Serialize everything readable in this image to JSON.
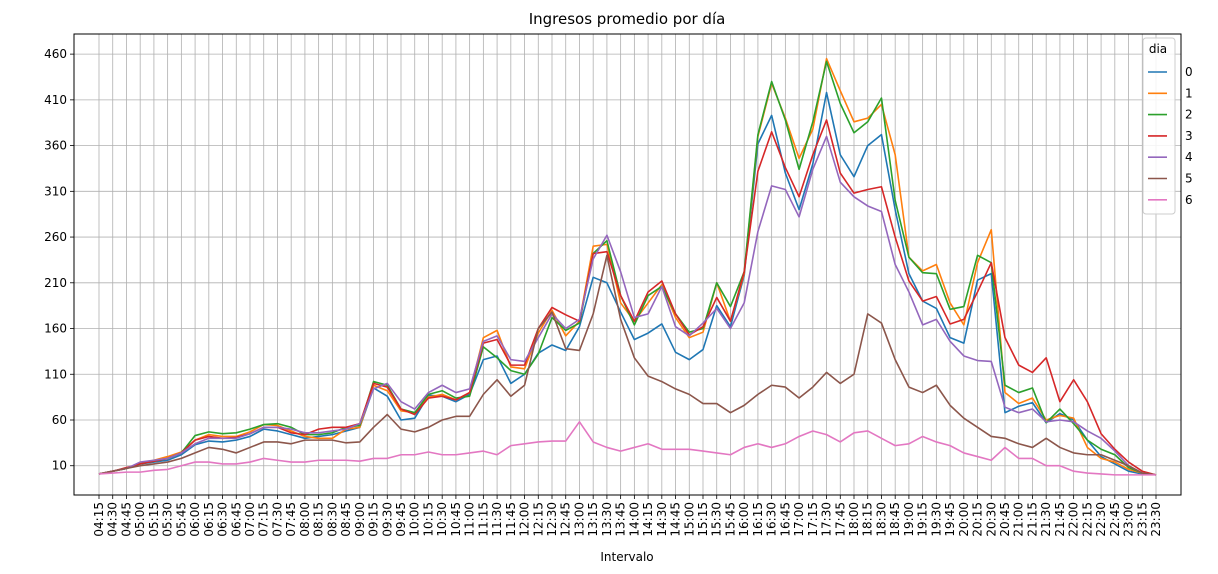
{
  "chart_data": {
    "type": "line",
    "title": "Ingresos promedio por día",
    "xlabel": "Intervalo",
    "ylabel": "",
    "ylim": [
      -22,
      482
    ],
    "yticks": [
      10,
      60,
      110,
      160,
      210,
      260,
      310,
      360,
      410,
      460
    ],
    "grid": true,
    "legend": {
      "title": "dia",
      "placement": "top-right"
    },
    "colors": [
      "#1f77b4",
      "#ff7f0e",
      "#2ca02c",
      "#d62728",
      "#9467bd",
      "#8c564b",
      "#e377c2"
    ],
    "categories": [
      "04:15",
      "04:30",
      "04:45",
      "05:00",
      "05:15",
      "05:30",
      "05:45",
      "06:00",
      "06:15",
      "06:30",
      "06:45",
      "07:00",
      "07:15",
      "07:30",
      "07:45",
      "08:00",
      "08:15",
      "08:30",
      "08:45",
      "09:00",
      "09:15",
      "09:30",
      "09:45",
      "10:00",
      "10:15",
      "10:30",
      "10:45",
      "11:00",
      "11:15",
      "11:30",
      "11:45",
      "12:00",
      "12:15",
      "12:30",
      "12:45",
      "13:00",
      "13:15",
      "13:30",
      "13:45",
      "14:00",
      "14:15",
      "14:30",
      "14:45",
      "15:00",
      "15:15",
      "15:30",
      "15:45",
      "16:00",
      "16:15",
      "16:30",
      "16:45",
      "17:00",
      "17:15",
      "17:30",
      "17:45",
      "18:00",
      "18:15",
      "18:30",
      "18:45",
      "19:00",
      "19:15",
      "19:30",
      "19:45",
      "20:00",
      "20:15",
      "20:30",
      "20:45",
      "21:00",
      "21:15",
      "21:30",
      "21:45",
      "22:00",
      "22:15",
      "22:30",
      "22:45",
      "23:00",
      "23:15",
      "23:30"
    ],
    "series": [
      {
        "name": "0",
        "values": [
          1,
          4,
          7,
          12,
          14,
          16,
          22,
          33,
          37,
          36,
          38,
          42,
          50,
          48,
          44,
          40,
          42,
          44,
          48,
          52,
          95,
          86,
          60,
          62,
          87,
          86,
          80,
          88,
          126,
          130,
          100,
          110,
          133,
          142,
          136,
          162,
          216,
          210,
          178,
          148,
          155,
          165,
          134,
          126,
          137,
          185,
          162,
          218,
          362,
          393,
          330,
          290,
          340,
          418,
          350,
          326,
          360,
          372,
          290,
          220,
          190,
          182,
          150,
          144,
          213,
          220,
          68,
          75,
          79,
          57,
          67,
          60,
          38,
          20,
          12,
          4,
          1,
          0
        ]
      },
      {
        "name": "1",
        "values": [
          1,
          4,
          7,
          13,
          16,
          20,
          25,
          38,
          44,
          42,
          42,
          47,
          55,
          54,
          48,
          42,
          40,
          40,
          50,
          52,
          98,
          92,
          70,
          68,
          85,
          88,
          82,
          90,
          150,
          158,
          118,
          116,
          155,
          180,
          152,
          168,
          250,
          252,
          188,
          168,
          188,
          208,
          172,
          150,
          156,
          210,
          168,
          220,
          370,
          428,
          390,
          346,
          378,
          455,
          420,
          386,
          390,
          405,
          350,
          238,
          223,
          230,
          188,
          164,
          232,
          268,
          90,
          78,
          84,
          60,
          65,
          62,
          30,
          18,
          14,
          6,
          2,
          0
        ]
      },
      {
        "name": "2",
        "values": [
          1,
          4,
          7,
          12,
          15,
          18,
          24,
          43,
          47,
          45,
          46,
          50,
          55,
          56,
          52,
          44,
          44,
          46,
          52,
          54,
          102,
          98,
          72,
          68,
          88,
          92,
          84,
          86,
          140,
          128,
          114,
          110,
          132,
          172,
          158,
          166,
          242,
          256,
          196,
          164,
          196,
          206,
          176,
          156,
          160,
          210,
          184,
          222,
          372,
          430,
          388,
          334,
          386,
          452,
          406,
          374,
          386,
          412,
          300,
          238,
          221,
          220,
          181,
          184,
          240,
          232,
          98,
          90,
          95,
          57,
          72,
          56,
          38,
          28,
          22,
          8,
          2,
          0
        ]
      },
      {
        "name": "3",
        "values": [
          1,
          4,
          8,
          12,
          15,
          18,
          24,
          38,
          42,
          40,
          41,
          45,
          52,
          52,
          46,
          44,
          50,
          52,
          52,
          56,
          100,
          96,
          72,
          66,
          84,
          86,
          82,
          90,
          144,
          148,
          120,
          120,
          160,
          183,
          175,
          168,
          242,
          244,
          196,
          168,
          200,
          212,
          176,
          153,
          162,
          194,
          168,
          222,
          332,
          375,
          336,
          304,
          350,
          388,
          330,
          308,
          312,
          315,
          260,
          212,
          190,
          195,
          165,
          170,
          200,
          232,
          150,
          120,
          112,
          128,
          80,
          104,
          80,
          45,
          28,
          14,
          4,
          0
        ]
      },
      {
        "name": "4",
        "values": [
          1,
          4,
          7,
          14,
          16,
          18,
          24,
          34,
          40,
          40,
          40,
          45,
          52,
          52,
          50,
          46,
          46,
          48,
          50,
          56,
          94,
          100,
          80,
          72,
          90,
          98,
          90,
          94,
          146,
          152,
          126,
          124,
          150,
          176,
          160,
          170,
          236,
          262,
          222,
          172,
          176,
          206,
          162,
          152,
          166,
          182,
          160,
          188,
          266,
          316,
          312,
          282,
          334,
          370,
          320,
          304,
          294,
          288,
          230,
          200,
          164,
          170,
          146,
          130,
          125,
          124,
          74,
          68,
          72,
          58,
          60,
          58,
          48,
          40,
          26,
          10,
          2,
          0
        ]
      },
      {
        "name": "5",
        "values": [
          1,
          4,
          7,
          10,
          12,
          14,
          18,
          24,
          30,
          28,
          24,
          30,
          36,
          36,
          34,
          38,
          38,
          38,
          35,
          36,
          52,
          66,
          50,
          47,
          52,
          60,
          64,
          64,
          88,
          104,
          86,
          98,
          160,
          178,
          138,
          136,
          176,
          240,
          170,
          128,
          108,
          102,
          94,
          88,
          78,
          78,
          68,
          76,
          88,
          98,
          96,
          84,
          96,
          112,
          100,
          110,
          176,
          166,
          126,
          96,
          90,
          98,
          76,
          62,
          52,
          42,
          40,
          34,
          30,
          40,
          30,
          24,
          22,
          22,
          16,
          10,
          2,
          0
        ]
      },
      {
        "name": "6",
        "values": [
          1,
          2,
          3,
          3,
          5,
          6,
          10,
          14,
          14,
          12,
          12,
          14,
          18,
          16,
          14,
          14,
          16,
          16,
          16,
          15,
          18,
          18,
          22,
          22,
          25,
          22,
          22,
          24,
          26,
          22,
          32,
          34,
          36,
          37,
          37,
          58,
          36,
          30,
          26,
          30,
          34,
          28,
          28,
          28,
          26,
          24,
          22,
          30,
          34,
          30,
          34,
          42,
          48,
          44,
          36,
          46,
          48,
          40,
          32,
          34,
          42,
          36,
          32,
          24,
          20,
          16,
          30,
          18,
          18,
          10,
          10,
          4,
          2,
          1,
          0,
          0,
          0,
          0
        ]
      }
    ]
  }
}
